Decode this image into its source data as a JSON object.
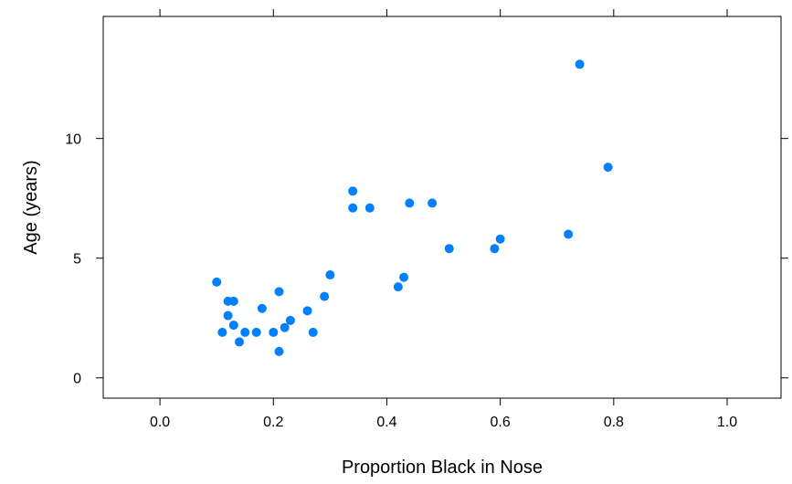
{
  "chart_data": {
    "type": "scatter",
    "title": "",
    "xlabel": "Proportion Black in Nose",
    "ylabel": "Age (years)",
    "xlim": [
      -0.1,
      1.095
    ],
    "ylim": [
      -0.85,
      15.1
    ],
    "xticks": [
      0.0,
      0.2,
      0.4,
      0.6,
      0.8,
      1.0
    ],
    "xtick_labels": [
      "0.0",
      "0.2",
      "0.4",
      "0.6",
      "0.8",
      "1.0"
    ],
    "yticks": [
      0,
      5,
      10
    ],
    "ytick_labels": [
      "0",
      "5",
      "10"
    ],
    "grid": false,
    "marker_color": "#0080ff",
    "points": [
      {
        "x": 0.1,
        "y": 4.0
      },
      {
        "x": 0.11,
        "y": 1.9
      },
      {
        "x": 0.12,
        "y": 3.2
      },
      {
        "x": 0.12,
        "y": 2.6
      },
      {
        "x": 0.13,
        "y": 3.2
      },
      {
        "x": 0.13,
        "y": 2.2
      },
      {
        "x": 0.14,
        "y": 1.5
      },
      {
        "x": 0.15,
        "y": 1.9
      },
      {
        "x": 0.17,
        "y": 1.9
      },
      {
        "x": 0.18,
        "y": 2.9
      },
      {
        "x": 0.2,
        "y": 1.9
      },
      {
        "x": 0.21,
        "y": 3.6
      },
      {
        "x": 0.21,
        "y": 1.1
      },
      {
        "x": 0.22,
        "y": 2.1
      },
      {
        "x": 0.23,
        "y": 2.4
      },
      {
        "x": 0.26,
        "y": 2.8
      },
      {
        "x": 0.27,
        "y": 1.9
      },
      {
        "x": 0.29,
        "y": 3.4
      },
      {
        "x": 0.3,
        "y": 4.3
      },
      {
        "x": 0.34,
        "y": 7.8
      },
      {
        "x": 0.34,
        "y": 7.1
      },
      {
        "x": 0.37,
        "y": 7.1
      },
      {
        "x": 0.42,
        "y": 3.8
      },
      {
        "x": 0.43,
        "y": 4.2
      },
      {
        "x": 0.44,
        "y": 7.3
      },
      {
        "x": 0.48,
        "y": 7.3
      },
      {
        "x": 0.51,
        "y": 5.4
      },
      {
        "x": 0.59,
        "y": 5.4
      },
      {
        "x": 0.6,
        "y": 5.8
      },
      {
        "x": 0.72,
        "y": 6.0
      },
      {
        "x": 0.74,
        "y": 13.1
      },
      {
        "x": 0.79,
        "y": 8.8
      }
    ]
  }
}
